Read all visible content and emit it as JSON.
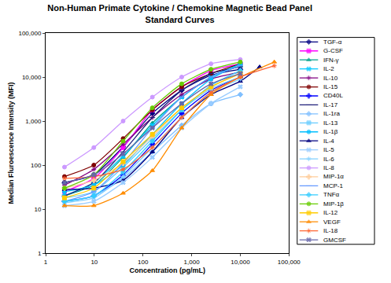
{
  "chart_data": {
    "type": "line",
    "title": "Non-Human Primate Cytokine / Chemokine Magnetic Bead Panel",
    "subtitle": "Standard Curves",
    "x_label": "Concentration (pg/mL)",
    "y_label": "Median Fluroescence Intensity (MFI)",
    "log": true,
    "grid": false,
    "legend": "right",
    "xlim": [
      1,
      100000
    ],
    "ylim": [
      1,
      100000
    ],
    "xticks": [
      1,
      10,
      100,
      {
        "value": 1000,
        "label": "1,000"
      },
      {
        "value": 10000,
        "label": "10,000"
      },
      {
        "value": 100000,
        "label": "100,000"
      }
    ],
    "yticks": [
      1,
      10,
      100,
      {
        "value": 1000,
        "label": "1,000"
      },
      {
        "value": 10000,
        "label": "10,000"
      },
      {
        "value": 100000,
        "label": "100,000"
      }
    ],
    "series": [
      {
        "name": "TGF-α",
        "color": "#000080",
        "marker": "diamond",
        "x": [
          2.44,
          9.77,
          39.1,
          156,
          625,
          2500,
          10000
        ],
        "values": [
          40,
          60,
          260,
          1500,
          5000,
          11000,
          15000
        ]
      },
      {
        "name": "G-CSF",
        "color": "#ff00ff",
        "marker": "square",
        "x": [
          2.44,
          9.77,
          39.1,
          156,
          625,
          2500,
          10000
        ],
        "values": [
          25,
          50,
          250,
          1800,
          6000,
          14000,
          20000
        ]
      },
      {
        "name": "IFN-γ",
        "color": "#00a08c",
        "marker": "triangle-up",
        "x": [
          2.44,
          9.77,
          39.1,
          156,
          625,
          2500,
          10000
        ],
        "values": [
          20,
          35,
          150,
          900,
          3500,
          10000,
          18000
        ]
      },
      {
        "name": "IL-2",
        "color": "#00c8ff",
        "marker": "x",
        "x": [
          2.44,
          9.77,
          39.1,
          156,
          625,
          2500,
          10000
        ],
        "values": [
          20,
          40,
          160,
          800,
          3500,
          10000,
          20000
        ]
      },
      {
        "name": "IL-10",
        "color": "#800080",
        "marker": "asterisk",
        "x": [
          2.44,
          9.77,
          39.1,
          156,
          625,
          2500,
          10000
        ],
        "values": [
          35,
          80,
          300,
          1200,
          4000,
          9000,
          13000
        ]
      },
      {
        "name": "IL-15",
        "color": "#800000",
        "marker": "circle",
        "x": [
          2.44,
          9.77,
          39.1,
          156,
          625,
          2500,
          10000
        ],
        "values": [
          55,
          100,
          400,
          1800,
          6000,
          12000,
          20000
        ]
      },
      {
        "name": "CD40L",
        "color": "#0000ff",
        "marker": "cross",
        "x": [
          2.44,
          9.77,
          39.1,
          156,
          625,
          2500,
          10000
        ],
        "values": [
          15,
          20,
          60,
          300,
          1500,
          5000,
          10000
        ]
      },
      {
        "name": "IL-17",
        "color": "#1f1f7a",
        "marker": "line-ew",
        "x": [
          2.44,
          9.77,
          39.1,
          156,
          625,
          2500,
          10000
        ],
        "values": [
          20,
          40,
          200,
          1200,
          5000,
          12000,
          17000
        ]
      },
      {
        "name": "IL-1ra",
        "color": "#7fbfff",
        "marker": "diamond",
        "x": [
          2.44,
          9.77,
          39.1,
          156,
          625,
          2500,
          10000
        ],
        "values": [
          15,
          20,
          50,
          200,
          800,
          2500,
          4000
        ]
      },
      {
        "name": "IL-13",
        "color": "#66ccff",
        "marker": "square",
        "x": [
          2.44,
          9.77,
          39.1,
          156,
          625,
          2500,
          10000
        ],
        "values": [
          18,
          25,
          90,
          400,
          1800,
          5500,
          10000
        ]
      },
      {
        "name": "IL-1β",
        "color": "#00bfff",
        "marker": "circle",
        "x": [
          2.44,
          9.77,
          39.1,
          156,
          625,
          2500,
          10000
        ],
        "values": [
          25,
          35,
          100,
          500,
          2500,
          9000,
          20000
        ]
      },
      {
        "name": "IL-4",
        "color": "#000080",
        "marker": "triangle-up",
        "x": [
          2.44,
          9.77,
          39.1,
          156,
          625,
          2500,
          10000,
          25000
        ],
        "values": [
          28,
          30,
          45,
          200,
          1200,
          4000,
          8000,
          17000
        ]
      },
      {
        "name": "IL-5",
        "color": "#99ccff",
        "marker": "x",
        "x": [
          2.44,
          9.77,
          39.1,
          156,
          625,
          2500,
          10000
        ],
        "values": [
          12,
          15,
          40,
          150,
          700,
          2500,
          6000
        ]
      },
      {
        "name": "IL-6",
        "color": "#80d0ff",
        "marker": "asterisk",
        "x": [
          2.44,
          9.77,
          39.1,
          156,
          625,
          2500,
          10000
        ],
        "values": [
          14,
          18,
          55,
          250,
          1200,
          4500,
          9000
        ]
      },
      {
        "name": "IL-8",
        "color": "#cc99ff",
        "marker": "circle",
        "x": [
          2.44,
          9.77,
          39.1,
          156,
          625,
          2500,
          10000
        ],
        "values": [
          90,
          250,
          1000,
          3500,
          10000,
          20000,
          25000
        ]
      },
      {
        "name": "MIP-1α",
        "color": "#ffcc99",
        "marker": "cross",
        "x": [
          2.44,
          9.77,
          39.1,
          156,
          625,
          2500,
          10000
        ],
        "values": [
          30,
          45,
          110,
          450,
          2000,
          6000,
          12000
        ]
      },
      {
        "name": "MCP-1",
        "color": "#6699ff",
        "marker": "line-ew",
        "x": [
          2.44,
          9.77,
          39.1,
          156,
          625,
          2500,
          10000
        ],
        "values": [
          15,
          25,
          110,
          700,
          3500,
          10000,
          18000
        ]
      },
      {
        "name": "TNFα",
        "color": "#33ccff",
        "marker": "diamond",
        "x": [
          2.44,
          9.77,
          39.1,
          156,
          625,
          2500,
          10000
        ],
        "values": [
          15,
          20,
          70,
          350,
          1800,
          6500,
          14000
        ]
      },
      {
        "name": "MIP-1β",
        "color": "#66cc00",
        "marker": "circle",
        "x": [
          2.44,
          9.77,
          39.1,
          156,
          625,
          2500,
          10000
        ],
        "values": [
          30,
          60,
          350,
          2000,
          7000,
          15000,
          22000
        ]
      },
      {
        "name": "IL-12",
        "color": "#ffcc00",
        "marker": "square",
        "x": [
          2.44,
          9.77,
          39.1,
          156,
          625,
          2500,
          10000
        ],
        "values": [
          18,
          30,
          120,
          500,
          2000,
          6000,
          12000
        ]
      },
      {
        "name": "VEGF",
        "color": "#ff8c00",
        "marker": "triangle-up",
        "x": [
          2.44,
          9.77,
          39.1,
          156,
          625,
          2500,
          10000,
          50000
        ],
        "values": [
          12,
          12,
          23,
          75,
          700,
          4000,
          10000,
          22000
        ]
      },
      {
        "name": "IL-18",
        "color": "#ff6633",
        "marker": "asterisk",
        "x": [
          2.44,
          9.77,
          39.1,
          156,
          625,
          2500,
          10000,
          50000
        ],
        "values": [
          50,
          55,
          80,
          250,
          1200,
          4500,
          10000,
          18000
        ]
      },
      {
        "name": "GMCSF",
        "color": "#6666aa",
        "marker": "x",
        "x": [
          2.44,
          9.77,
          39.1,
          156,
          625,
          2500,
          10000
        ],
        "values": [
          40,
          60,
          180,
          700,
          2500,
          7000,
          12000
        ]
      }
    ]
  }
}
